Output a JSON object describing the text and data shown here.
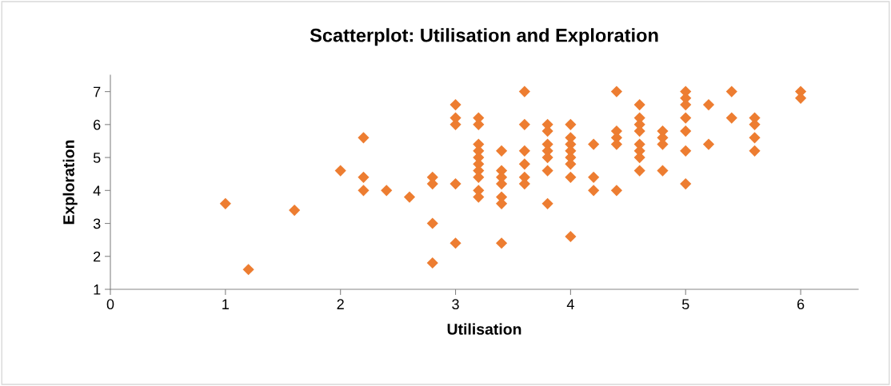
{
  "chart_data": {
    "type": "scatter",
    "title": "Scatterplot: Utilisation and Exploration",
    "xlabel": "Utilisation",
    "ylabel": "Exploration",
    "xlim": [
      0,
      6.5
    ],
    "ylim": [
      1,
      7.5
    ],
    "xticks": [
      0,
      1,
      2,
      3,
      4,
      5,
      6
    ],
    "yticks": [
      1,
      2,
      3,
      4,
      5,
      6,
      7
    ],
    "grid": false,
    "legend": false,
    "marker": "diamond",
    "series": [
      {
        "color": "#ed7d31",
        "x": [
          1,
          1.2,
          1.6,
          2,
          2.2,
          2.2,
          2.2,
          2.4,
          2.6,
          2.8,
          2.8,
          2.8,
          2.8,
          3,
          3,
          3,
          3,
          3,
          3.2,
          3.2,
          3.2,
          3.2,
          3.2,
          3.2,
          3.2,
          3.2,
          3.2,
          3.2,
          3.4,
          3.4,
          3.4,
          3.4,
          3.4,
          3.4,
          3.4,
          3.6,
          3.6,
          3.6,
          3.6,
          3.6,
          3.6,
          3.8,
          3.8,
          3.8,
          3.8,
          3.8,
          3.8,
          3.8,
          4,
          4,
          4,
          4,
          4,
          4,
          4,
          4,
          4.2,
          4.2,
          4.2,
          4.4,
          4.4,
          4.4,
          4.4,
          4.4,
          4.6,
          4.6,
          4.6,
          4.6,
          4.6,
          4.6,
          4.6,
          4.6,
          4.8,
          4.8,
          4.8,
          4.8,
          5,
          5,
          5,
          5,
          5,
          5,
          5,
          5.2,
          5.2,
          5.4,
          5.4,
          5.6,
          5.6,
          5.6,
          5.6,
          6,
          6
        ],
        "values": [
          3.6,
          1.6,
          3.4,
          4.6,
          5.6,
          4.4,
          4.0,
          4.0,
          3.8,
          4.4,
          4.2,
          3.0,
          1.8,
          6.6,
          6.2,
          6.0,
          4.2,
          2.4,
          6.2,
          6.0,
          5.4,
          5.2,
          5.0,
          4.8,
          4.6,
          4.4,
          4.0,
          3.8,
          5.2,
          4.6,
          4.4,
          4.2,
          3.8,
          3.6,
          2.4,
          7.0,
          6.0,
          5.2,
          4.8,
          4.4,
          4.2,
          6.0,
          5.8,
          5.4,
          5.2,
          5.0,
          4.6,
          3.6,
          6.0,
          5.6,
          5.4,
          5.2,
          5.0,
          4.8,
          4.4,
          2.6,
          5.4,
          4.4,
          4.0,
          7.0,
          5.8,
          5.6,
          5.4,
          4.0,
          6.6,
          6.2,
          6.0,
          5.8,
          5.4,
          5.2,
          5.0,
          4.6,
          5.8,
          5.6,
          5.4,
          4.6,
          7.0,
          6.8,
          6.6,
          6.2,
          5.8,
          5.2,
          4.2,
          6.6,
          5.4,
          7.0,
          6.2,
          6.2,
          6.0,
          5.6,
          5.2,
          7.0,
          6.8
        ]
      }
    ]
  }
}
